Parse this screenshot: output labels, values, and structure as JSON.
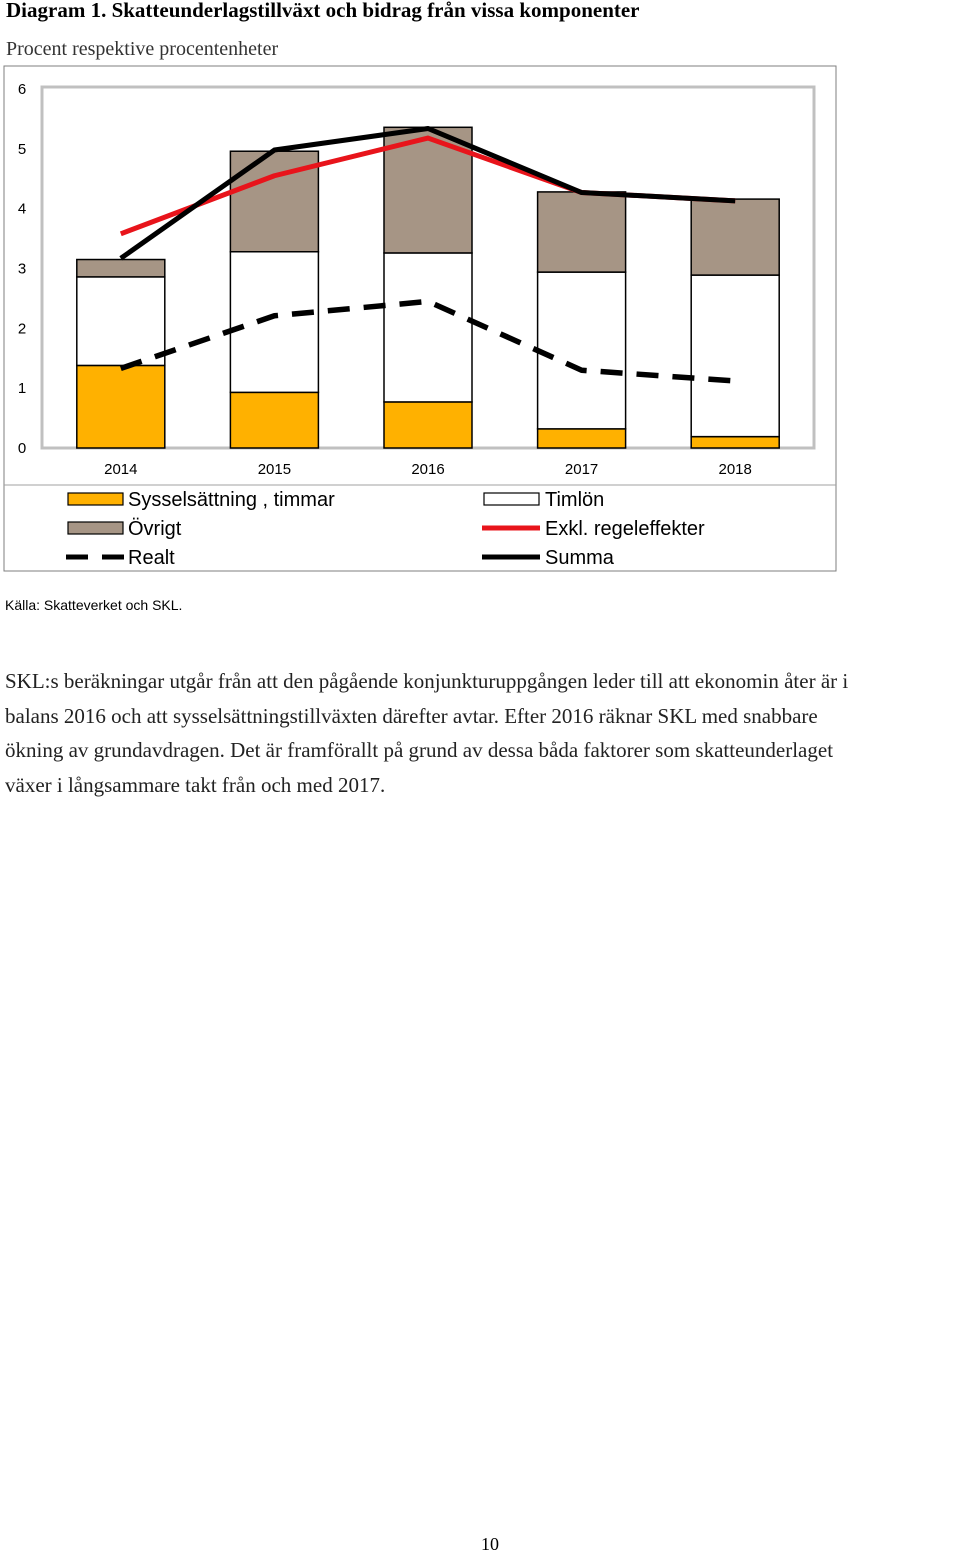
{
  "title": "Diagram 1. Skatteunderlagstillväxt och bidrag från vissa komponenter",
  "subtitle": "Procent respektive procentenheter",
  "source": "Källa: Skatteverket och SKL.",
  "body_lines": [
    "SKL:s beräkningar utgår från att den pågående konjunkturuppgången leder till att ekonomin åter är i",
    "balans 2016 och att sysselsättningstillväxten därefter avtar. Efter 2016 räknar SKL med snabbare",
    "ökning av grundavdragen. Det är framförallt på grund av dessa båda faktorer som skatteunderlaget",
    "växer i långsammare takt från och med 2017."
  ],
  "page_number": "10",
  "chart_data": {
    "type": "bar",
    "stacked": true,
    "categories": [
      "2014",
      "2015",
      "2016",
      "2017",
      "2018"
    ],
    "ylim": [
      0,
      6
    ],
    "yticks": [
      "0",
      "1",
      "2",
      "3",
      "4",
      "5",
      "6"
    ],
    "grid": false,
    "legend_position": "bottom",
    "series": [
      {
        "name": "Sysselsättning , timmar",
        "kind": "bar",
        "color": "#FFB100",
        "values": [
          1.38,
          0.93,
          0.77,
          0.32,
          0.19
        ]
      },
      {
        "name": "Timlön",
        "kind": "bar",
        "color": "#FFFFFF",
        "values": [
          1.48,
          2.35,
          2.49,
          2.62,
          2.7
        ]
      },
      {
        "name": "Övrigt",
        "kind": "bar",
        "color": "#A69585",
        "values": [
          0.29,
          1.68,
          2.1,
          1.34,
          1.27
        ]
      },
      {
        "name": "Exkl. regeleffekter",
        "kind": "line",
        "color": "#E8141B",
        "dash": "solid",
        "values": [
          3.58,
          4.55,
          5.18,
          4.27,
          4.13
        ]
      },
      {
        "name": "Realt",
        "kind": "line",
        "color": "#000000",
        "dash": "dashed",
        "values": [
          1.33,
          2.21,
          2.45,
          1.3,
          1.12
        ]
      },
      {
        "name": "Summa",
        "kind": "line",
        "color": "#000000",
        "dash": "solid",
        "values": [
          3.17,
          4.98,
          5.34,
          4.27,
          4.13
        ]
      }
    ],
    "legend_columns": [
      [
        "Sysselsättning , timmar",
        "Övrigt",
        "Realt"
      ],
      [
        "Timlön",
        "Exkl. regeleffekter",
        "Summa"
      ]
    ]
  }
}
